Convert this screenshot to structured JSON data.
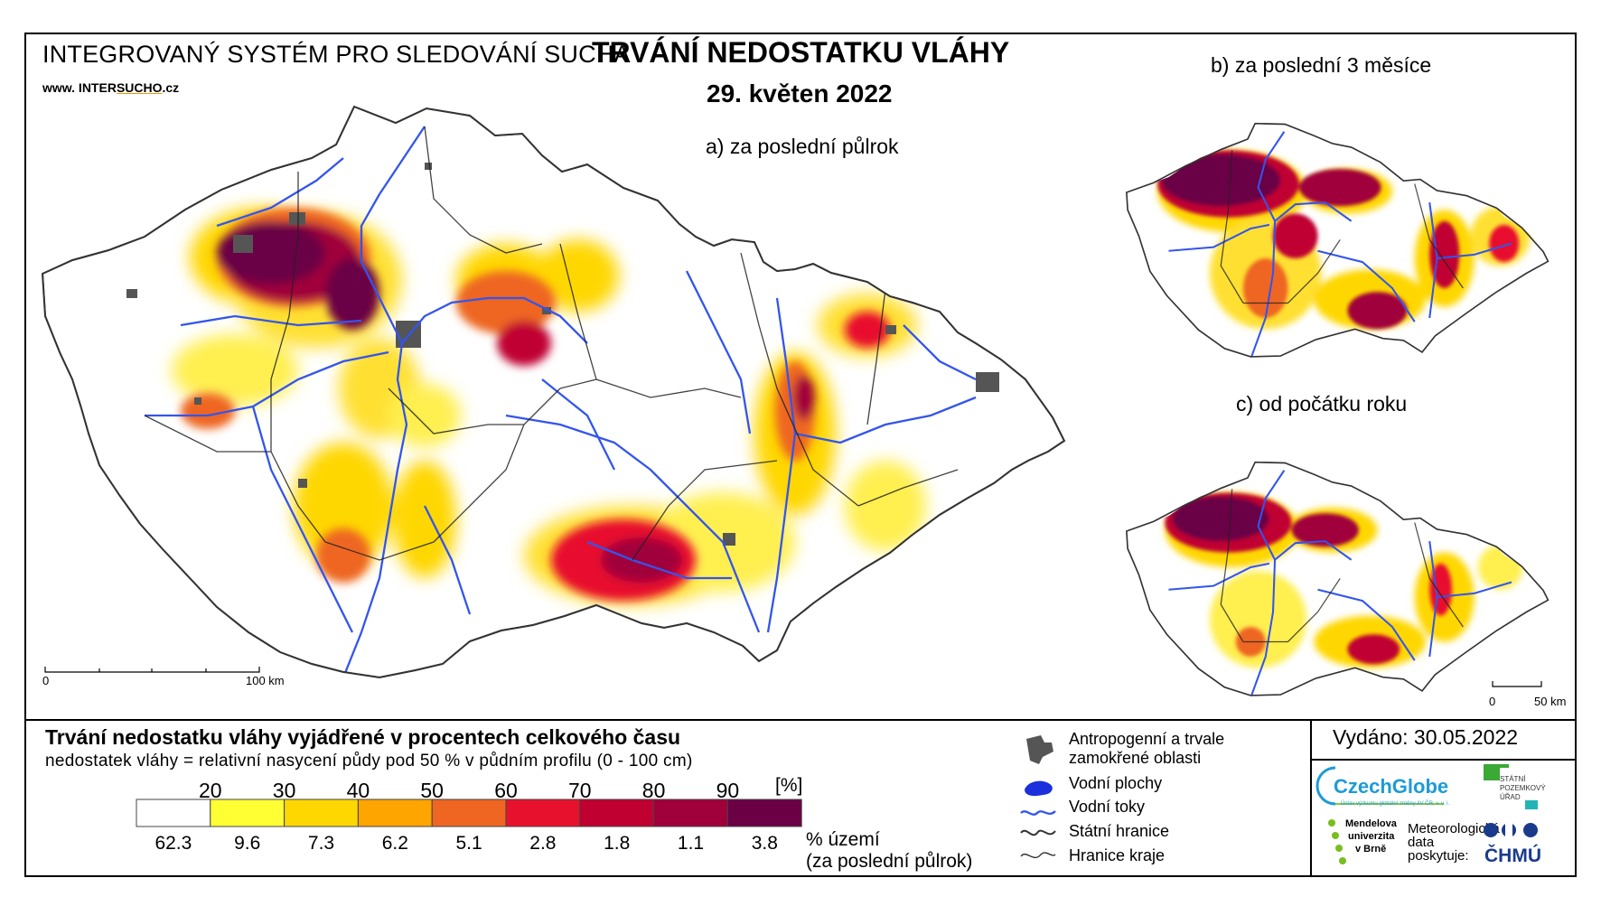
{
  "header": {
    "system_name": "INTEGROVANÝ SYSTÉM PRO SLEDOVÁNÍ SUCHA",
    "website_prefix": "www. INTER",
    "website_brand": "SUCHO",
    "website_suffix": ".cz",
    "title": "TRVÁNÍ NEDOSTATKU VLÁHY",
    "date": "29. květen 2022"
  },
  "maps": {
    "a_label": "a) za poslední půlrok",
    "b_label": "b) za poslední 3 měsíce",
    "c_label": "c) od počátku roku",
    "scale_a_zero": "0",
    "scale_a_end": "100 km",
    "scale_c_zero": "0",
    "scale_c_end": "50 km"
  },
  "legend": {
    "title": "Trvání nedostatku vláhy vyjádřené v procentech celkového času",
    "subtitle": "nedostatek vláhy = relativní nasycení půdy pod 50 % v půdním profilu (0 - 100 cm)",
    "unit": "[%]",
    "thresholds": [
      "20",
      "30",
      "40",
      "50",
      "60",
      "70",
      "80",
      "90"
    ],
    "class_colors": [
      "#ffffff",
      "#ffff33",
      "#ffd700",
      "#ffa500",
      "#ee6622",
      "#e8112d",
      "#c00030",
      "#a0003a",
      "#6b0045"
    ],
    "area_percentages": [
      "62.3",
      "9.6",
      "7.3",
      "6.2",
      "5.1",
      "2.8",
      "1.8",
      "1.1",
      "3.8"
    ],
    "area_label_1": "% území",
    "area_label_2": "(za poslední půlrok)"
  },
  "symbols": {
    "items": [
      {
        "label": "Antropogenní a trvale",
        "icon": "urban-area-icon"
      },
      {
        "label": "zamokřené oblasti",
        "icon": ""
      },
      {
        "label": "Vodní plochy",
        "icon": "water-body-icon"
      },
      {
        "label": "Vodní toky",
        "icon": "river-icon"
      },
      {
        "label": "Státní hranice",
        "icon": "state-border-icon"
      },
      {
        "label": "Hranice kraje",
        "icon": "region-border-icon"
      }
    ]
  },
  "footer": {
    "issued": "Vydáno: 30.05.2022",
    "logo_czechglobe": "CzechGlobe",
    "logo_czechglobe_sub": "Ústav výzkumu globální změny AV ČR, v. v. i.",
    "logo_spu_1": "STÁTNÍ",
    "logo_spu_2": "POZEMKOVÝ",
    "logo_spu_3": "ÚŘAD",
    "logo_mendel_1": "Mendelova",
    "logo_mendel_2": "univerzita",
    "logo_mendel_3": "v Brně",
    "met_1": "Meteorologická",
    "met_2": "data",
    "met_3": "poskytuje:",
    "logo_chmu": "ČHMÚ"
  }
}
